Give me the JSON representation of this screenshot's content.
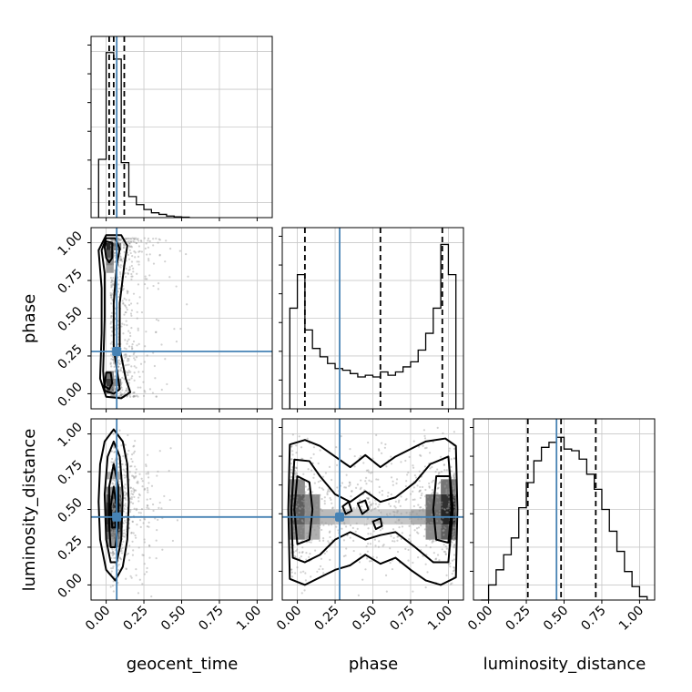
{
  "chart_data": {
    "type": "corner",
    "parameters": [
      "geocent_time",
      "phase",
      "luminosity_distance"
    ],
    "truth": {
      "geocent_time": 0.07,
      "phase": 0.28,
      "luminosity_distance": 0.45
    },
    "tick_labels": [
      "0.00",
      "0.25",
      "0.50",
      "0.75",
      "1.00"
    ],
    "xlim": [
      -0.1,
      1.1
    ],
    "ylim": [
      -0.1,
      1.1
    ],
    "grid": true,
    "colors": {
      "truth": "#4682b4",
      "hist": "#000000",
      "quantile": "#000000",
      "scatter": "#9a9a9a",
      "grid": "#c8c8c8"
    },
    "marginals": [
      {
        "parameter": "geocent_time",
        "bin_edges": [
          -0.05,
          0.0,
          0.05,
          0.1,
          0.15,
          0.2,
          0.25,
          0.3,
          0.35,
          0.4,
          0.45,
          0.5,
          0.55
        ],
        "counts": [
          0.36,
          1.02,
          0.98,
          0.34,
          0.13,
          0.08,
          0.05,
          0.03,
          0.02,
          0.01,
          0.005,
          0.003
        ],
        "ylim": [
          0,
          1.12
        ],
        "quantiles": [
          0.02,
          0.05,
          0.12
        ]
      },
      {
        "parameter": "phase",
        "bin_edges": [
          -0.05,
          0.0,
          0.05,
          0.1,
          0.15,
          0.2,
          0.25,
          0.3,
          0.35,
          0.4,
          0.45,
          0.5,
          0.55,
          0.6,
          0.65,
          0.7,
          0.75,
          0.8,
          0.85,
          0.9,
          0.95,
          1.0,
          1.05
        ],
        "counts": [
          0.6,
          0.8,
          0.47,
          0.36,
          0.31,
          0.27,
          0.24,
          0.23,
          0.21,
          0.19,
          0.2,
          0.19,
          0.22,
          0.2,
          0.22,
          0.25,
          0.28,
          0.35,
          0.45,
          0.6,
          0.98,
          0.8
        ],
        "ylim": [
          0,
          1.08
        ],
        "quantiles": [
          0.05,
          0.55,
          0.96
        ]
      },
      {
        "parameter": "luminosity_distance",
        "bin_edges": [
          -0.05,
          0.0,
          0.05,
          0.1,
          0.15,
          0.2,
          0.25,
          0.3,
          0.35,
          0.4,
          0.45,
          0.5,
          0.55,
          0.6,
          0.65,
          0.7,
          0.75,
          0.8,
          0.85,
          0.9,
          0.95,
          1.0,
          1.05
        ],
        "counts": [
          0.0,
          0.09,
          0.18,
          0.27,
          0.37,
          0.55,
          0.7,
          0.83,
          0.91,
          0.94,
          0.97,
          0.9,
          0.89,
          0.84,
          0.75,
          0.66,
          0.54,
          0.41,
          0.29,
          0.17,
          0.08,
          0.02
        ],
        "ylim": [
          0,
          1.08
        ],
        "quantiles": [
          0.26,
          0.48,
          0.71
        ]
      }
    ],
    "joints": [
      {
        "x_param": "geocent_time",
        "y_param": "phase",
        "scatter_seed": 17,
        "scatter_count": 700,
        "density_cells": [
          {
            "x": 0.025,
            "y": 0.975,
            "level": 0.95
          },
          {
            "x": 0.025,
            "y": 0.925,
            "level": 0.75
          },
          {
            "x": 0.025,
            "y": 0.875,
            "level": 0.55
          },
          {
            "x": 0.025,
            "y": 0.825,
            "level": 0.4
          },
          {
            "x": 0.025,
            "y": 0.125,
            "level": 0.6
          },
          {
            "x": 0.025,
            "y": 0.075,
            "level": 0.85
          },
          {
            "x": 0.025,
            "y": 0.025,
            "level": 0.7
          },
          {
            "x": 0.075,
            "y": 0.975,
            "level": 0.6
          },
          {
            "x": 0.075,
            "y": 0.075,
            "level": 0.5
          }
        ],
        "contours": [
          [
            [
              0.0,
              1.05
            ],
            [
              0.1,
              1.05
            ],
            [
              0.14,
              0.98
            ],
            [
              0.12,
              0.85
            ],
            [
              0.09,
              0.6
            ],
            [
              0.09,
              0.3
            ],
            [
              0.13,
              0.1
            ],
            [
              0.16,
              0.01
            ],
            [
              0.1,
              -0.03
            ],
            [
              0.0,
              -0.02
            ],
            [
              -0.04,
              0.1
            ],
            [
              -0.03,
              0.4
            ],
            [
              -0.03,
              0.7
            ],
            [
              -0.05,
              0.95
            ]
          ],
          [
            [
              0.0,
              1.03
            ],
            [
              0.06,
              1.03
            ],
            [
              0.09,
              0.96
            ],
            [
              0.07,
              0.85
            ],
            [
              0.05,
              0.6
            ],
            [
              0.05,
              0.3
            ],
            [
              0.08,
              0.1
            ],
            [
              0.09,
              0.03
            ],
            [
              0.05,
              0.0
            ],
            [
              -0.01,
              0.02
            ],
            [
              -0.02,
              0.15
            ],
            [
              -0.01,
              0.5
            ],
            [
              -0.01,
              0.8
            ],
            [
              -0.03,
              0.95
            ]
          ],
          [
            [
              0.0,
              1.01
            ],
            [
              0.04,
              1.0
            ],
            [
              0.04,
              0.9
            ],
            [
              0.02,
              0.87
            ],
            [
              0.0,
              0.9
            ],
            [
              -0.01,
              0.97
            ]
          ],
          [
            [
              0.0,
              0.14
            ],
            [
              0.03,
              0.14
            ],
            [
              0.04,
              0.07
            ],
            [
              0.02,
              0.03
            ],
            [
              -0.01,
              0.05
            ]
          ]
        ]
      },
      {
        "x_param": "geocent_time",
        "y_param": "luminosity_distance",
        "scatter_seed": 29,
        "scatter_count": 600,
        "density_cells": [
          {
            "x": 0.05,
            "y": 0.625,
            "level": 0.5
          },
          {
            "x": 0.05,
            "y": 0.575,
            "level": 0.75
          },
          {
            "x": 0.05,
            "y": 0.525,
            "level": 0.9
          },
          {
            "x": 0.05,
            "y": 0.475,
            "level": 0.95
          },
          {
            "x": 0.05,
            "y": 0.425,
            "level": 0.9
          },
          {
            "x": 0.05,
            "y": 0.375,
            "level": 0.8
          },
          {
            "x": 0.05,
            "y": 0.325,
            "level": 0.6
          },
          {
            "x": 0.05,
            "y": 0.275,
            "level": 0.45
          },
          {
            "x": 0.05,
            "y": 0.725,
            "level": 0.35
          }
        ],
        "contours": [
          [
            [
              0.05,
              1.03
            ],
            [
              0.11,
              0.95
            ],
            [
              0.14,
              0.8
            ],
            [
              0.15,
              0.55
            ],
            [
              0.14,
              0.3
            ],
            [
              0.11,
              0.12
            ],
            [
              0.06,
              0.03
            ],
            [
              0.0,
              0.1
            ],
            [
              -0.04,
              0.3
            ],
            [
              -0.05,
              0.55
            ],
            [
              -0.04,
              0.8
            ],
            [
              -0.01,
              0.95
            ]
          ],
          [
            [
              0.05,
              0.95
            ],
            [
              0.09,
              0.85
            ],
            [
              0.11,
              0.6
            ],
            [
              0.1,
              0.3
            ],
            [
              0.07,
              0.15
            ],
            [
              0.03,
              0.15
            ],
            [
              0.0,
              0.3
            ],
            [
              -0.01,
              0.6
            ],
            [
              0.01,
              0.85
            ]
          ],
          [
            [
              0.05,
              0.8
            ],
            [
              0.08,
              0.65
            ],
            [
              0.08,
              0.4
            ],
            [
              0.06,
              0.25
            ],
            [
              0.03,
              0.25
            ],
            [
              0.02,
              0.4
            ],
            [
              0.02,
              0.65
            ]
          ],
          [
            [
              0.05,
              0.65
            ],
            [
              0.07,
              0.52
            ],
            [
              0.06,
              0.38
            ],
            [
              0.04,
              0.38
            ],
            [
              0.03,
              0.52
            ]
          ]
        ]
      },
      {
        "x_param": "phase",
        "y_param": "luminosity_distance",
        "scatter_seed": 41,
        "scatter_count": 900,
        "density_cells": [
          {
            "x": 0.0,
            "y": 0.55,
            "level": 0.7
          },
          {
            "x": 0.0,
            "y": 0.45,
            "level": 0.7
          },
          {
            "x": 0.0,
            "y": 0.35,
            "level": 0.55
          },
          {
            "x": 0.0,
            "y": 0.65,
            "level": 0.5
          },
          {
            "x": 0.1,
            "y": 0.55,
            "level": 0.5
          },
          {
            "x": 0.1,
            "y": 0.45,
            "level": 0.5
          },
          {
            "x": 0.1,
            "y": 0.35,
            "level": 0.35
          },
          {
            "x": 0.2,
            "y": 0.45,
            "level": 0.3
          },
          {
            "x": 0.3,
            "y": 0.45,
            "level": 0.25
          },
          {
            "x": 0.4,
            "y": 0.45,
            "level": 0.2
          },
          {
            "x": 0.5,
            "y": 0.45,
            "level": 0.2
          },
          {
            "x": 0.6,
            "y": 0.45,
            "level": 0.22
          },
          {
            "x": 0.7,
            "y": 0.45,
            "level": 0.25
          },
          {
            "x": 0.8,
            "y": 0.45,
            "level": 0.35
          },
          {
            "x": 0.9,
            "y": 0.55,
            "level": 0.6
          },
          {
            "x": 0.9,
            "y": 0.45,
            "level": 0.65
          },
          {
            "x": 0.9,
            "y": 0.35,
            "level": 0.5
          },
          {
            "x": 1.0,
            "y": 0.55,
            "level": 0.9
          },
          {
            "x": 1.0,
            "y": 0.45,
            "level": 0.95
          },
          {
            "x": 1.0,
            "y": 0.35,
            "level": 0.7
          },
          {
            "x": 1.0,
            "y": 0.65,
            "level": 0.6
          }
        ],
        "contours": [
          [
            [
              -0.05,
              0.93
            ],
            [
              0.05,
              0.96
            ],
            [
              0.15,
              0.92
            ],
            [
              0.25,
              0.85
            ],
            [
              0.35,
              0.78
            ],
            [
              0.45,
              0.86
            ],
            [
              0.55,
              0.78
            ],
            [
              0.65,
              0.85
            ],
            [
              0.75,
              0.9
            ],
            [
              0.85,
              0.95
            ],
            [
              0.98,
              0.97
            ],
            [
              1.05,
              0.92
            ],
            [
              1.06,
              0.5
            ],
            [
              1.05,
              0.05
            ],
            [
              0.95,
              0.0
            ],
            [
              0.85,
              0.03
            ],
            [
              0.75,
              0.1
            ],
            [
              0.65,
              0.18
            ],
            [
              0.55,
              0.14
            ],
            [
              0.45,
              0.2
            ],
            [
              0.35,
              0.13
            ],
            [
              0.25,
              0.1
            ],
            [
              0.15,
              0.05
            ],
            [
              0.05,
              0.0
            ],
            [
              -0.05,
              0.04
            ],
            [
              -0.06,
              0.5
            ]
          ],
          [
            [
              -0.02,
              0.83
            ],
            [
              0.08,
              0.82
            ],
            [
              0.15,
              0.72
            ],
            [
              0.25,
              0.6
            ],
            [
              0.35,
              0.55
            ],
            [
              0.45,
              0.62
            ],
            [
              0.55,
              0.55
            ],
            [
              0.65,
              0.58
            ],
            [
              0.78,
              0.68
            ],
            [
              0.88,
              0.8
            ],
            [
              1.0,
              0.85
            ],
            [
              1.03,
              0.5
            ],
            [
              1.0,
              0.15
            ],
            [
              0.9,
              0.15
            ],
            [
              0.78,
              0.25
            ],
            [
              0.65,
              0.35
            ],
            [
              0.55,
              0.33
            ],
            [
              0.45,
              0.3
            ],
            [
              0.35,
              0.35
            ],
            [
              0.25,
              0.3
            ],
            [
              0.15,
              0.2
            ],
            [
              0.05,
              0.15
            ],
            [
              -0.03,
              0.18
            ],
            [
              -0.04,
              0.5
            ]
          ],
          [
            [
              0.0,
              0.72
            ],
            [
              0.08,
              0.68
            ],
            [
              0.1,
              0.5
            ],
            [
              0.08,
              0.3
            ],
            [
              0.0,
              0.27
            ],
            [
              -0.02,
              0.5
            ]
          ],
          [
            [
              0.92,
              0.72
            ],
            [
              1.01,
              0.72
            ],
            [
              1.02,
              0.5
            ],
            [
              1.0,
              0.28
            ],
            [
              0.92,
              0.3
            ],
            [
              0.9,
              0.5
            ]
          ],
          [
            [
              0.4,
              0.54
            ],
            [
              0.45,
              0.56
            ],
            [
              0.47,
              0.5
            ],
            [
              0.43,
              0.47
            ]
          ],
          [
            [
              0.5,
              0.42
            ],
            [
              0.55,
              0.44
            ],
            [
              0.56,
              0.39
            ],
            [
              0.52,
              0.37
            ]
          ],
          [
            [
              0.3,
              0.52
            ],
            [
              0.34,
              0.55
            ],
            [
              0.36,
              0.49
            ],
            [
              0.32,
              0.47
            ]
          ]
        ]
      }
    ]
  }
}
